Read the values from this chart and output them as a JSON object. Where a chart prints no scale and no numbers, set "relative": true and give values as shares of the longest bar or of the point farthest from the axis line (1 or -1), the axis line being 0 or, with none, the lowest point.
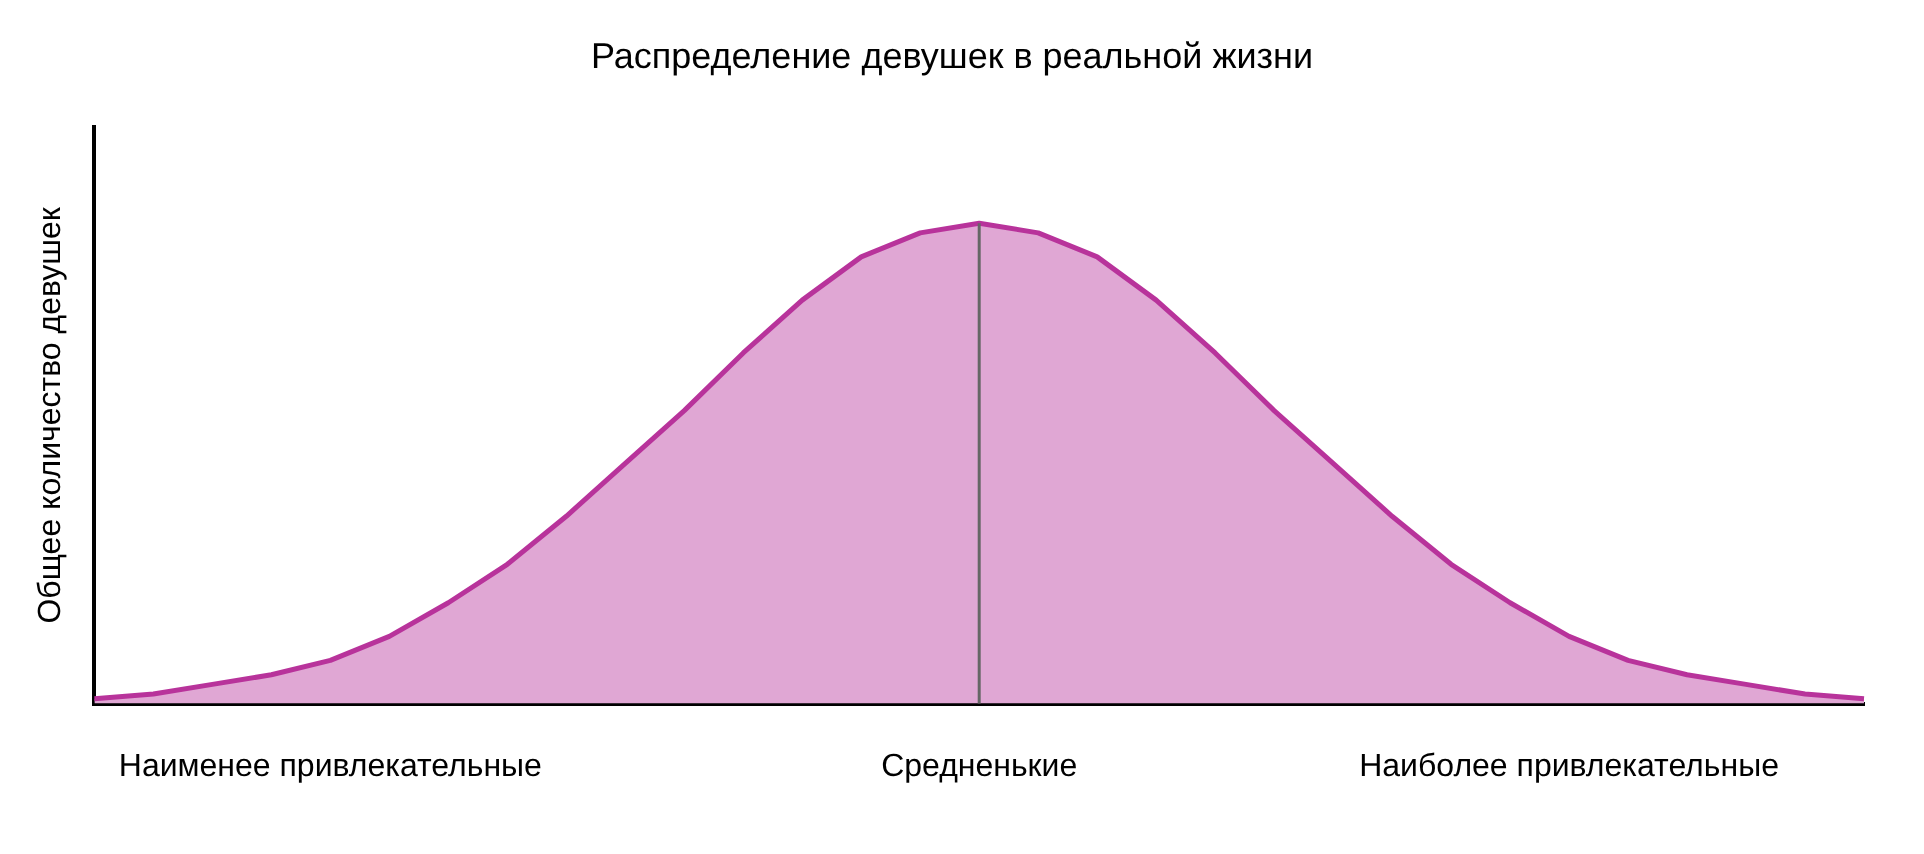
{
  "chart_data": {
    "type": "area",
    "title": "Распределение девушек в реальной жизни",
    "ylabel": "Общее количество девушек",
    "relative": true,
    "grid": false,
    "legend": false,
    "marker": "none",
    "categories": [
      null,
      null,
      null,
      null,
      "Наименее привлекательные",
      null,
      null,
      null,
      null,
      null,
      null,
      null,
      null,
      null,
      null,
      "Средненькие",
      null,
      null,
      null,
      null,
      null,
      null,
      null,
      null,
      null,
      "Наиболее привлекательные",
      null,
      null,
      null,
      null,
      null
    ],
    "series": [
      {
        "color": "#b8339b",
        "values": [
          0.01,
          0.02,
          0.04,
          0.06,
          0.09,
          0.14,
          0.21,
          0.29,
          0.39,
          0.5,
          0.61,
          0.73,
          0.84,
          0.93,
          0.98,
          1,
          0.98,
          0.93,
          0.84,
          0.73,
          0.61,
          0.5,
          0.39,
          0.29,
          0.21,
          0.14,
          0.09,
          0.06,
          0.04,
          0.02,
          0.01
        ]
      }
    ],
    "ref_lines": [
      {
        "axis": "x",
        "value": "Средненькие",
        "color": "#666666"
      }
    ]
  }
}
